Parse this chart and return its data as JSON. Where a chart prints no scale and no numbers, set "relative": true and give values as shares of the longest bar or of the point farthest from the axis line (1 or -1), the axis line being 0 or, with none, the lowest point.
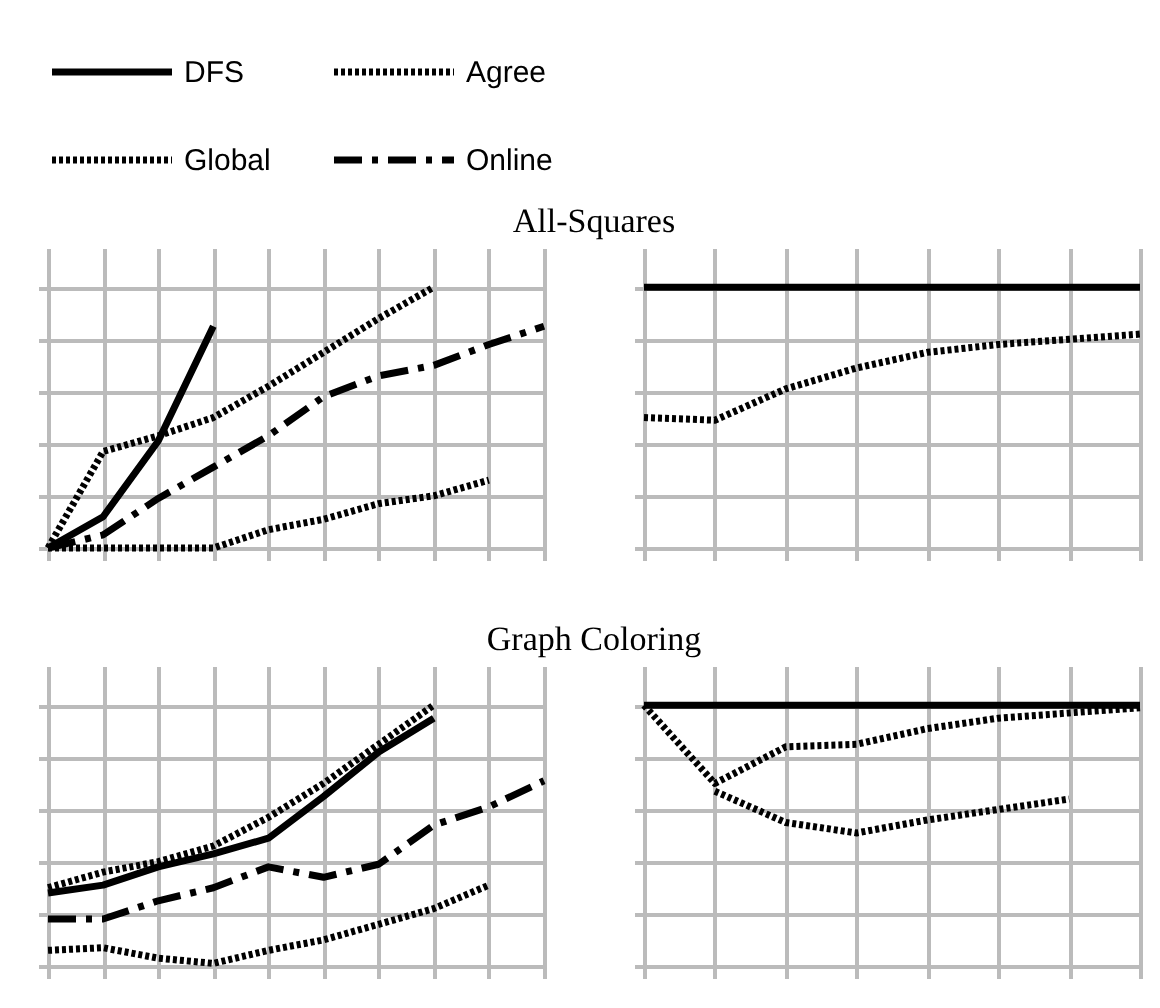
{
  "chart_data": [
    {
      "type": "line",
      "title": "All-Squares",
      "relative": true,
      "grid": true,
      "tick_labels": false,
      "legend": "top",
      "categories": [
        null,
        null,
        null,
        null,
        null,
        null,
        null,
        null,
        null,
        null
      ],
      "series": [
        {
          "name": "DFS",
          "color": "#000000",
          "line_style": "solid",
          "values": [
            0,
            0.12,
            0.41,
            0.85,
            null,
            null,
            null,
            null,
            null,
            null
          ]
        },
        {
          "name": "Agree",
          "color": "#000000",
          "line_style": "dotted",
          "values": [
            0,
            0.37,
            0.43,
            0.5,
            0.62,
            0.75,
            0.88,
            1.0,
            null,
            null
          ]
        },
        {
          "name": "Global",
          "color": "#000000",
          "line_style": "dotted",
          "values": [
            0,
            0,
            0,
            0,
            0.07,
            0.11,
            0.17,
            0.2,
            0.26,
            null
          ]
        },
        {
          "name": "Online",
          "color": "#000000",
          "line_style": "dashed",
          "values": [
            0,
            0.05,
            0.19,
            0.31,
            0.43,
            0.58,
            0.66,
            0.7,
            0.78,
            0.85
          ]
        }
      ]
    },
    {
      "type": "line",
      "relative": true,
      "grid": true,
      "tick_labels": false,
      "categories": [
        null,
        null,
        null,
        null,
        null,
        null,
        null,
        null
      ],
      "series": [
        {
          "name": "DFS",
          "color": "#000000",
          "line_style": "solid",
          "values": [
            1,
            1,
            1,
            1,
            1,
            1,
            1,
            1
          ]
        },
        {
          "name": "Global",
          "color": "#000000",
          "line_style": "dotted",
          "values": [
            0.5,
            0.49,
            0.61,
            0.69,
            0.75,
            0.78,
            0.8,
            0.82
          ]
        }
      ]
    },
    {
      "type": "line",
      "title": "Graph Coloring",
      "relative": true,
      "grid": true,
      "tick_labels": false,
      "categories": [
        null,
        null,
        null,
        null,
        null,
        null,
        null,
        null,
        null,
        null
      ],
      "series": [
        {
          "name": "DFS",
          "color": "#000000",
          "line_style": "solid",
          "values": [
            0.28,
            0.31,
            0.38,
            0.43,
            0.49,
            0.65,
            0.82,
            0.95,
            null,
            null
          ]
        },
        {
          "name": "Agree",
          "color": "#000000",
          "line_style": "dotted",
          "values": [
            0.3,
            0.36,
            0.4,
            0.46,
            0.57,
            0.7,
            0.85,
            1.0,
            null,
            null
          ]
        },
        {
          "name": "Global",
          "color": "#000000",
          "line_style": "dotted",
          "values": [
            0.06,
            0.07,
            0.03,
            0.01,
            0.06,
            0.1,
            0.16,
            0.22,
            0.31,
            null
          ]
        },
        {
          "name": "Online",
          "color": "#000000",
          "line_style": "dashed",
          "values": [
            0.18,
            0.18,
            0.25,
            0.3,
            0.38,
            0.34,
            0.39,
            0.54,
            0.61,
            0.71
          ]
        }
      ]
    },
    {
      "type": "line",
      "relative": true,
      "grid": true,
      "tick_labels": false,
      "categories": [
        null,
        null,
        null,
        null,
        null,
        null,
        null,
        null
      ],
      "series": [
        {
          "name": "DFS",
          "color": "#000000",
          "line_style": "solid",
          "values": [
            1,
            1,
            1,
            1,
            1,
            1,
            1,
            1
          ]
        },
        {
          "name": "Agree",
          "color": "#000000",
          "line_style": "dotted",
          "values": [
            1,
            0.7,
            0.84,
            0.85,
            0.91,
            0.95,
            0.97,
            0.99
          ]
        },
        {
          "name": "Global",
          "color": "#000000",
          "line_style": "dotted",
          "values": [
            null,
            0.67,
            0.55,
            0.51,
            0.56,
            0.6,
            0.64,
            null
          ]
        }
      ]
    }
  ]
}
